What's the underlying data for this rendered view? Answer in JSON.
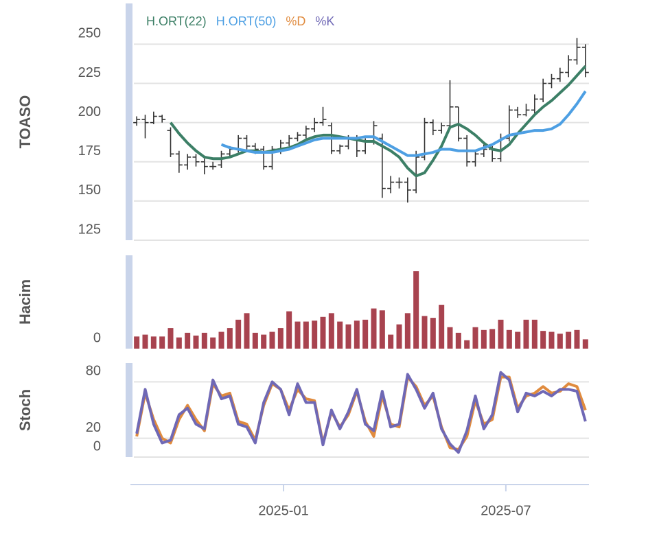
{
  "chart_data": [
    {
      "type": "ohlc",
      "ylabel": "TOASO",
      "color": "#333333",
      "open": [
        200,
        202,
        200,
        204,
        195,
        180,
        173,
        178,
        175,
        172,
        173,
        180,
        183,
        190,
        185,
        183,
        172,
        183,
        187,
        190,
        192,
        196,
        200,
        198,
        182,
        185,
        190,
        182,
        188,
        190,
        158,
        162,
        162,
        157,
        178,
        200,
        195,
        198,
        210,
        190,
        175,
        180,
        183,
        177,
        190,
        208,
        205,
        208,
        215,
        225,
        228,
        232,
        240,
        248
      ],
      "high": [
        204,
        205,
        207,
        205,
        197,
        182,
        180,
        180,
        177,
        175,
        182,
        185,
        192,
        192,
        187,
        185,
        185,
        189,
        192,
        194,
        198,
        203,
        210,
        200,
        186,
        192,
        192,
        190,
        201,
        193,
        166,
        165,
        165,
        182,
        203,
        202,
        200,
        227,
        210,
        192,
        182,
        186,
        185,
        193,
        211,
        210,
        212,
        218,
        228,
        231,
        235,
        243,
        254,
        250
      ],
      "low": [
        198,
        190,
        199,
        200,
        178,
        168,
        170,
        172,
        167,
        170,
        171,
        178,
        181,
        183,
        180,
        170,
        170,
        180,
        185,
        188,
        190,
        194,
        198,
        180,
        180,
        183,
        178,
        180,
        186,
        152,
        155,
        158,
        149,
        155,
        176,
        192,
        193,
        196,
        188,
        172,
        172,
        178,
        175,
        175,
        188,
        203,
        204,
        206,
        213,
        222,
        226,
        229,
        237,
        229
      ],
      "close": [
        202,
        200,
        204,
        202,
        180,
        173,
        178,
        175,
        172,
        172,
        180,
        183,
        190,
        185,
        183,
        172,
        183,
        187,
        190,
        192,
        196,
        200,
        202,
        182,
        185,
        190,
        182,
        188,
        198,
        158,
        162,
        162,
        157,
        178,
        200,
        195,
        198,
        210,
        190,
        175,
        180,
        183,
        177,
        190,
        208,
        205,
        208,
        215,
        225,
        228,
        232,
        240,
        248,
        232
      ],
      "series": [
        {
          "name": "H.ORT(22)",
          "color": "#3c7f66",
          "values": [
            null,
            null,
            null,
            null,
            200,
            193,
            187,
            182,
            178,
            177,
            177,
            178,
            180,
            182,
            182,
            181,
            182,
            183,
            184,
            186,
            189,
            191,
            192,
            192,
            191,
            190,
            189,
            188,
            188,
            185,
            182,
            178,
            171,
            166,
            168,
            176,
            185,
            197,
            199,
            196,
            192,
            187,
            183,
            182,
            186,
            193,
            199,
            205,
            210,
            214,
            219,
            224,
            230,
            236
          ]
        },
        {
          "name": "H.ORT(50)",
          "color": "#4d9fe3",
          "values": [
            null,
            null,
            null,
            null,
            null,
            null,
            null,
            null,
            null,
            null,
            186,
            184,
            183,
            182,
            181,
            181,
            181,
            182,
            183,
            185,
            187,
            189,
            190,
            190,
            190,
            190,
            190,
            191,
            191,
            188,
            185,
            182,
            179,
            179,
            180,
            181,
            183,
            183,
            182,
            182,
            182,
            184,
            186,
            189,
            192,
            193,
            194,
            195,
            195,
            196,
            199,
            205,
            212,
            220
          ]
        }
      ],
      "xlim": [
        -0.5,
        53.5
      ],
      "ylim": [
        125,
        276
      ],
      "yticks": [
        125,
        150,
        175,
        200,
        225,
        250
      ],
      "grid": true
    },
    {
      "type": "bar",
      "ylabel": "Hacim",
      "color": "#a8434f",
      "values": [
        13,
        15,
        13,
        13,
        22,
        12,
        17,
        14,
        17,
        12,
        18,
        22,
        31,
        38,
        17,
        15,
        18,
        22,
        40,
        29,
        29,
        30,
        34,
        38,
        29,
        26,
        30,
        31,
        43,
        41,
        15,
        26,
        38,
        83,
        35,
        33,
        47,
        23,
        17,
        9,
        23,
        20,
        21,
        31,
        20,
        18,
        31,
        31,
        19,
        18,
        16,
        18,
        20,
        10
      ],
      "xlim": [
        -0.5,
        53.5
      ],
      "ylim": [
        0,
        100
      ],
      "yticks": [
        0
      ],
      "grid": false
    },
    {
      "type": "line",
      "ylabel": "Stoch",
      "series": [
        {
          "name": "%D",
          "color": "#e08b3e",
          "values": [
            22,
            68,
            40,
            20,
            15,
            40,
            55,
            40,
            28,
            78,
            65,
            68,
            38,
            35,
            18,
            55,
            78,
            72,
            50,
            72,
            62,
            60,
            15,
            48,
            32,
            45,
            70,
            38,
            22,
            65,
            35,
            32,
            85,
            75,
            55,
            65,
            32,
            10,
            8,
            22,
            60,
            35,
            40,
            85,
            85,
            52,
            65,
            68,
            75,
            68,
            70,
            78,
            75,
            50
          ]
        },
        {
          "name": "%K",
          "color": "#6f68b5",
          "values": [
            25,
            72,
            35,
            15,
            18,
            45,
            52,
            35,
            30,
            82,
            62,
            65,
            35,
            32,
            15,
            58,
            80,
            72,
            45,
            78,
            58,
            58,
            13,
            50,
            30,
            48,
            72,
            35,
            28,
            70,
            32,
            35,
            88,
            72,
            52,
            68,
            30,
            14,
            5,
            28,
            65,
            30,
            45,
            90,
            82,
            48,
            68,
            65,
            70,
            65,
            72,
            72,
            70,
            38
          ]
        }
      ],
      "xlim": [
        -0.5,
        53.5
      ],
      "ylim": [
        0,
        100
      ],
      "yticks": [
        0,
        20,
        80
      ],
      "grid": true,
      "xticks": [
        {
          "value": 17.34,
          "label": "2025-01"
        },
        {
          "value": 43.6,
          "label": "2025-07"
        }
      ]
    }
  ]
}
